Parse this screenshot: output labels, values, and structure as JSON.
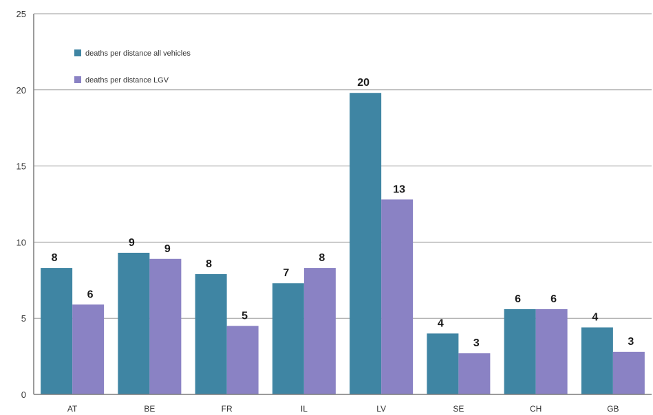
{
  "chart_data": {
    "type": "bar",
    "categories": [
      "AT",
      "BE",
      "FR",
      "IL",
      "LV",
      "SE",
      "CH",
      "GB"
    ],
    "series": [
      {
        "name": "deaths per distance all vehicles",
        "color": "#3f85a3",
        "values": [
          8.3,
          9.3,
          7.9,
          7.3,
          19.8,
          4.0,
          5.6,
          4.4
        ],
        "labels": [
          "8",
          "9",
          "8",
          "7",
          "20",
          "4",
          "6",
          "4"
        ]
      },
      {
        "name": "deaths per distance LGV",
        "color": "#8a82c4",
        "values": [
          5.9,
          8.9,
          4.5,
          8.3,
          12.8,
          2.7,
          5.6,
          2.8
        ],
        "labels": [
          "6",
          "9",
          "5",
          "8",
          "13",
          "3",
          "6",
          "3"
        ]
      }
    ],
    "ylim": [
      0,
      25
    ],
    "yticks": [
      0,
      5,
      10,
      15,
      20,
      25
    ],
    "grid": true,
    "legend_position": "top-left",
    "title": "",
    "xlabel": "",
    "ylabel": ""
  }
}
